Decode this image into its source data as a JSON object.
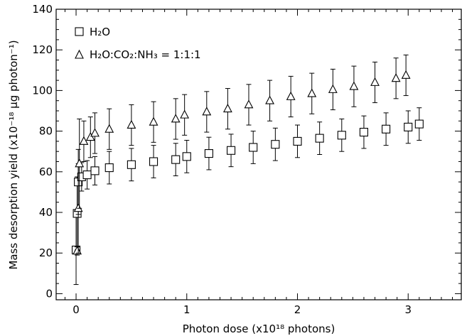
{
  "chart_data": {
    "type": "scatter",
    "xlabel": "Photon dose (x10¹⁸ photons)",
    "ylabel": "Mass desorption yield (x10⁻¹⁸ μg photon⁻¹)",
    "xlim": [
      -0.18,
      3.48
    ],
    "ylim": [
      -3,
      140
    ],
    "xticks": [
      0,
      1,
      2,
      3
    ],
    "yticks": [
      0,
      20,
      40,
      60,
      80,
      100,
      120,
      140
    ],
    "grid": false,
    "legend_position": "top-left",
    "series": [
      {
        "name": "H₂O",
        "marker": "square",
        "points": [
          {
            "x": 0.0,
            "y": 21.5,
            "err": 17
          },
          {
            "x": 0.01,
            "y": 39.5,
            "err": 18
          },
          {
            "x": 0.02,
            "y": 55,
            "err": 16
          },
          {
            "x": 0.05,
            "y": 57.5,
            "err": 7
          },
          {
            "x": 0.1,
            "y": 58.5,
            "err": 7
          },
          {
            "x": 0.17,
            "y": 60.5,
            "err": 7
          },
          {
            "x": 0.3,
            "y": 62,
            "err": 8
          },
          {
            "x": 0.5,
            "y": 63.5,
            "err": 8
          },
          {
            "x": 0.7,
            "y": 65,
            "err": 8
          },
          {
            "x": 0.9,
            "y": 66,
            "err": 8
          },
          {
            "x": 1.0,
            "y": 67.5,
            "err": 8
          },
          {
            "x": 1.2,
            "y": 69,
            "err": 8
          },
          {
            "x": 1.4,
            "y": 70.5,
            "err": 8
          },
          {
            "x": 1.6,
            "y": 72,
            "err": 8
          },
          {
            "x": 1.8,
            "y": 73.5,
            "err": 8
          },
          {
            "x": 2.0,
            "y": 75,
            "err": 8
          },
          {
            "x": 2.2,
            "y": 76.5,
            "err": 8
          },
          {
            "x": 2.4,
            "y": 78,
            "err": 8
          },
          {
            "x": 2.6,
            "y": 79.5,
            "err": 8
          },
          {
            "x": 2.8,
            "y": 81,
            "err": 8
          },
          {
            "x": 3.0,
            "y": 82,
            "err": 8
          },
          {
            "x": 3.1,
            "y": 83.5,
            "err": 8
          }
        ]
      },
      {
        "name": "H₂O:CO₂:NH₃ = 1:1:1",
        "marker": "triangle",
        "points": [
          {
            "x": 0.01,
            "y": 21,
            "err": 2
          },
          {
            "x": 0.02,
            "y": 42,
            "err": 22
          },
          {
            "x": 0.03,
            "y": 64,
            "err": 22
          },
          {
            "x": 0.07,
            "y": 75,
            "err": 10
          },
          {
            "x": 0.13,
            "y": 77,
            "err": 10
          },
          {
            "x": 0.17,
            "y": 79,
            "err": 10
          },
          {
            "x": 0.3,
            "y": 81,
            "err": 10
          },
          {
            "x": 0.5,
            "y": 83,
            "err": 10
          },
          {
            "x": 0.7,
            "y": 84.5,
            "err": 10
          },
          {
            "x": 0.9,
            "y": 86,
            "err": 10
          },
          {
            "x": 0.98,
            "y": 88,
            "err": 10
          },
          {
            "x": 1.18,
            "y": 89.5,
            "err": 10
          },
          {
            "x": 1.37,
            "y": 91,
            "err": 10
          },
          {
            "x": 1.56,
            "y": 93,
            "err": 10
          },
          {
            "x": 1.75,
            "y": 95,
            "err": 10
          },
          {
            "x": 1.94,
            "y": 97,
            "err": 10
          },
          {
            "x": 2.13,
            "y": 98.5,
            "err": 10
          },
          {
            "x": 2.32,
            "y": 100.5,
            "err": 10
          },
          {
            "x": 2.51,
            "y": 102,
            "err": 10
          },
          {
            "x": 2.7,
            "y": 104,
            "err": 10
          },
          {
            "x": 2.89,
            "y": 106,
            "err": 10
          },
          {
            "x": 2.98,
            "y": 107.5,
            "err": 10
          }
        ]
      }
    ]
  }
}
